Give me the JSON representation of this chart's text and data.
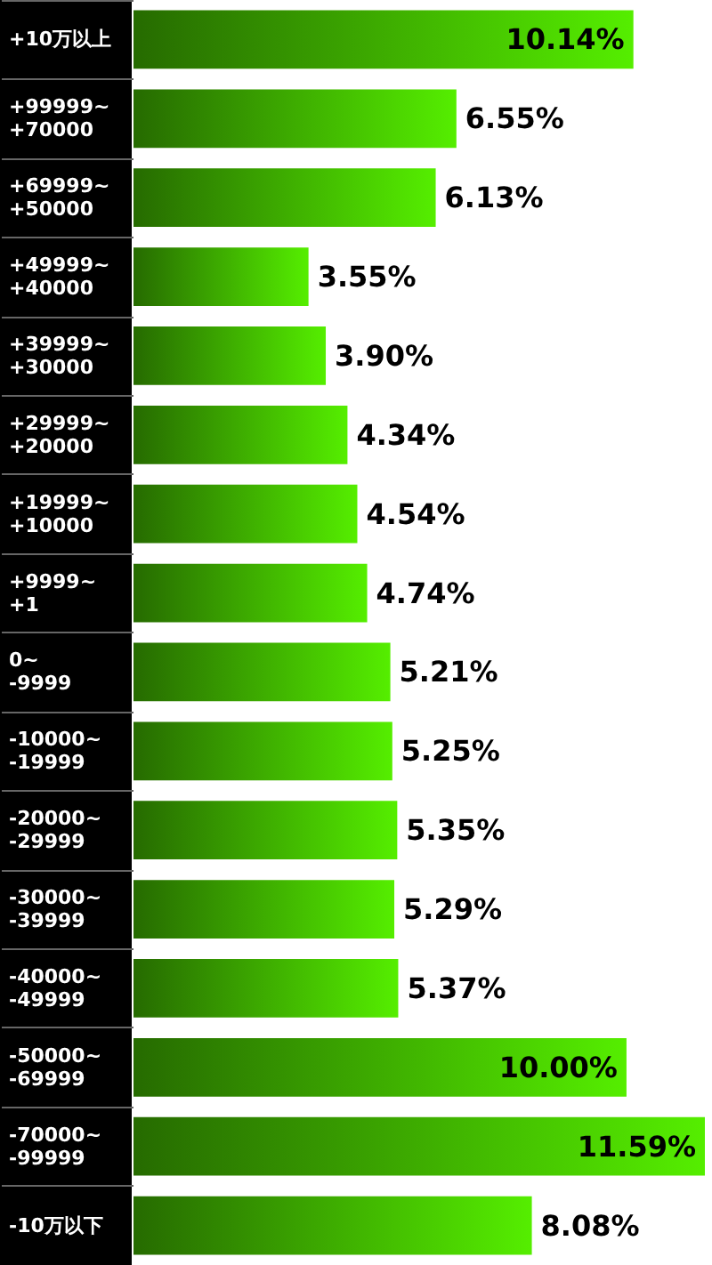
{
  "chart_data": {
    "type": "bar",
    "orientation": "horizontal",
    "categories": [
      "+10万以上",
      "+99999~\n+70000",
      "+69999~\n+50000",
      "+49999~\n+40000",
      "+39999~\n+30000",
      "+29999~\n+20000",
      "+19999~\n+10000",
      "+9999~\n+1",
      "0~\n-9999",
      "-10000~\n-19999",
      "-20000~\n-29999",
      "-30000~\n-39999",
      "-40000~\n-49999",
      "-50000~\n-69999",
      "-70000~\n-99999",
      "-10万以下"
    ],
    "values": [
      10.14,
      6.55,
      6.13,
      3.55,
      3.9,
      4.34,
      4.54,
      4.74,
      5.21,
      5.25,
      5.35,
      5.29,
      5.37,
      10.0,
      11.59,
      8.08
    ],
    "value_labels": [
      "10.14%",
      "6.55%",
      "6.13%",
      "3.55%",
      "3.90%",
      "4.34%",
      "4.54%",
      "4.74%",
      "5.21%",
      "5.25%",
      "5.35%",
      "5.29%",
      "5.37%",
      "10.00%",
      "11.59%",
      "8.08%"
    ],
    "color": "#55ee00"
  }
}
